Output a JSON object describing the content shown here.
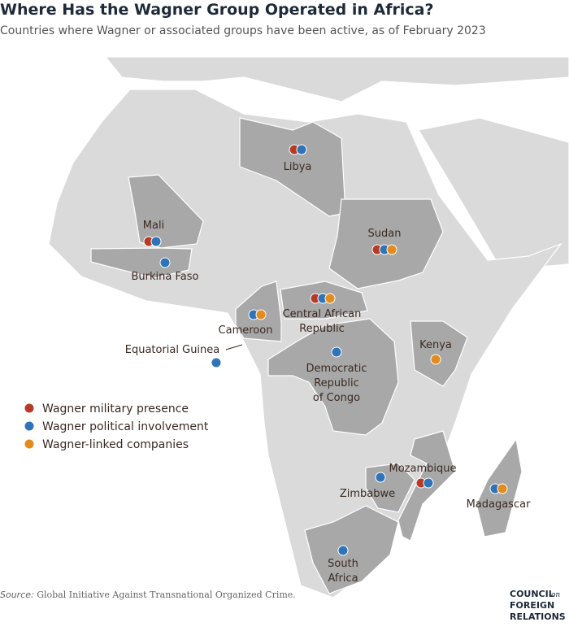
{
  "title": "Where Has the Wagner Group Operated in Africa?",
  "subtitle": "Countries where Wagner or associated groups have been active, as of February 2023",
  "legend": [
    {
      "label": "Wagner military presence",
      "color": "#b83a26"
    },
    {
      "label": "Wagner political involvement",
      "color": "#2f73b8"
    },
    {
      "label": "Wagner-linked companies",
      "color": "#e38b1c"
    }
  ],
  "countries": [
    [
      "Libya"
    ],
    [
      "Mali"
    ],
    [
      "Burkina Faso"
    ],
    [
      "Sudan"
    ],
    [
      "Central African",
      "Republic"
    ],
    [
      "Cameroon"
    ],
    [
      "Equatorial Guinea"
    ],
    [
      "Kenya"
    ],
    [
      "Democratic",
      "Republic",
      "of Congo"
    ],
    [
      "Mozambique"
    ],
    [
      "Zimbabwe"
    ],
    [
      "Madagascar"
    ],
    [
      "South",
      "Africa"
    ]
  ],
  "source": {
    "label": "Source:",
    "text": "Global Initiative Against Transnational Organized Crime."
  },
  "logo": {
    "line1": "COUNCIL",
    "on": "on",
    "line2": "FOREIGN",
    "line3": "RELATIONS"
  }
}
